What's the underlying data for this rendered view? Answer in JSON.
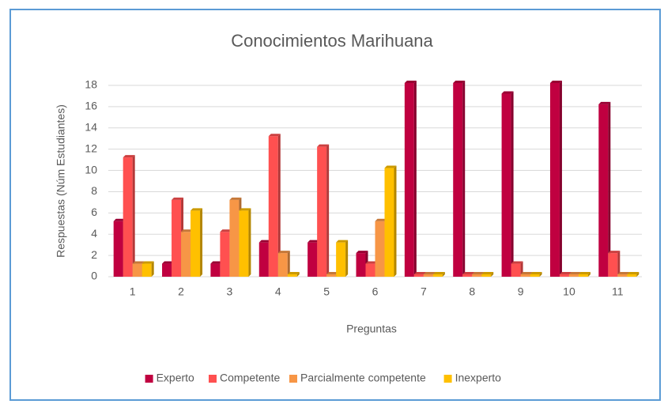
{
  "chart_data": {
    "type": "bar",
    "title": "Conocimientos Marihuana",
    "x_label": "Preguntas",
    "y_label": "Respuestas (Núm Estudiantes)",
    "categories": [
      "1",
      "2",
      "3",
      "4",
      "5",
      "6",
      "7",
      "8",
      "9",
      "10",
      "11"
    ],
    "series": [
      {
        "name": "Experto",
        "color": "#C00040",
        "values": [
          5,
          1,
          1,
          3,
          3,
          2,
          18,
          18,
          17,
          18,
          16
        ]
      },
      {
        "name": "Competente",
        "color": "#FF5050",
        "values": [
          11,
          7,
          4,
          13,
          12,
          1,
          0,
          0,
          1,
          0,
          2
        ]
      },
      {
        "name": "Parcialmente competente",
        "color": "#F79646",
        "values": [
          1,
          4,
          7,
          2,
          0,
          5,
          0,
          0,
          0,
          0,
          0
        ]
      },
      {
        "name": "Inexperto",
        "color": "#FFC000",
        "values": [
          1,
          6,
          6,
          0,
          3,
          10,
          0,
          0,
          0,
          0,
          0
        ]
      }
    ],
    "ylim": [
      0,
      18
    ],
    "yticks": [
      0,
      2,
      4,
      6,
      8,
      10,
      12,
      14,
      16,
      18
    ],
    "grid": true,
    "legend": "bottom"
  }
}
